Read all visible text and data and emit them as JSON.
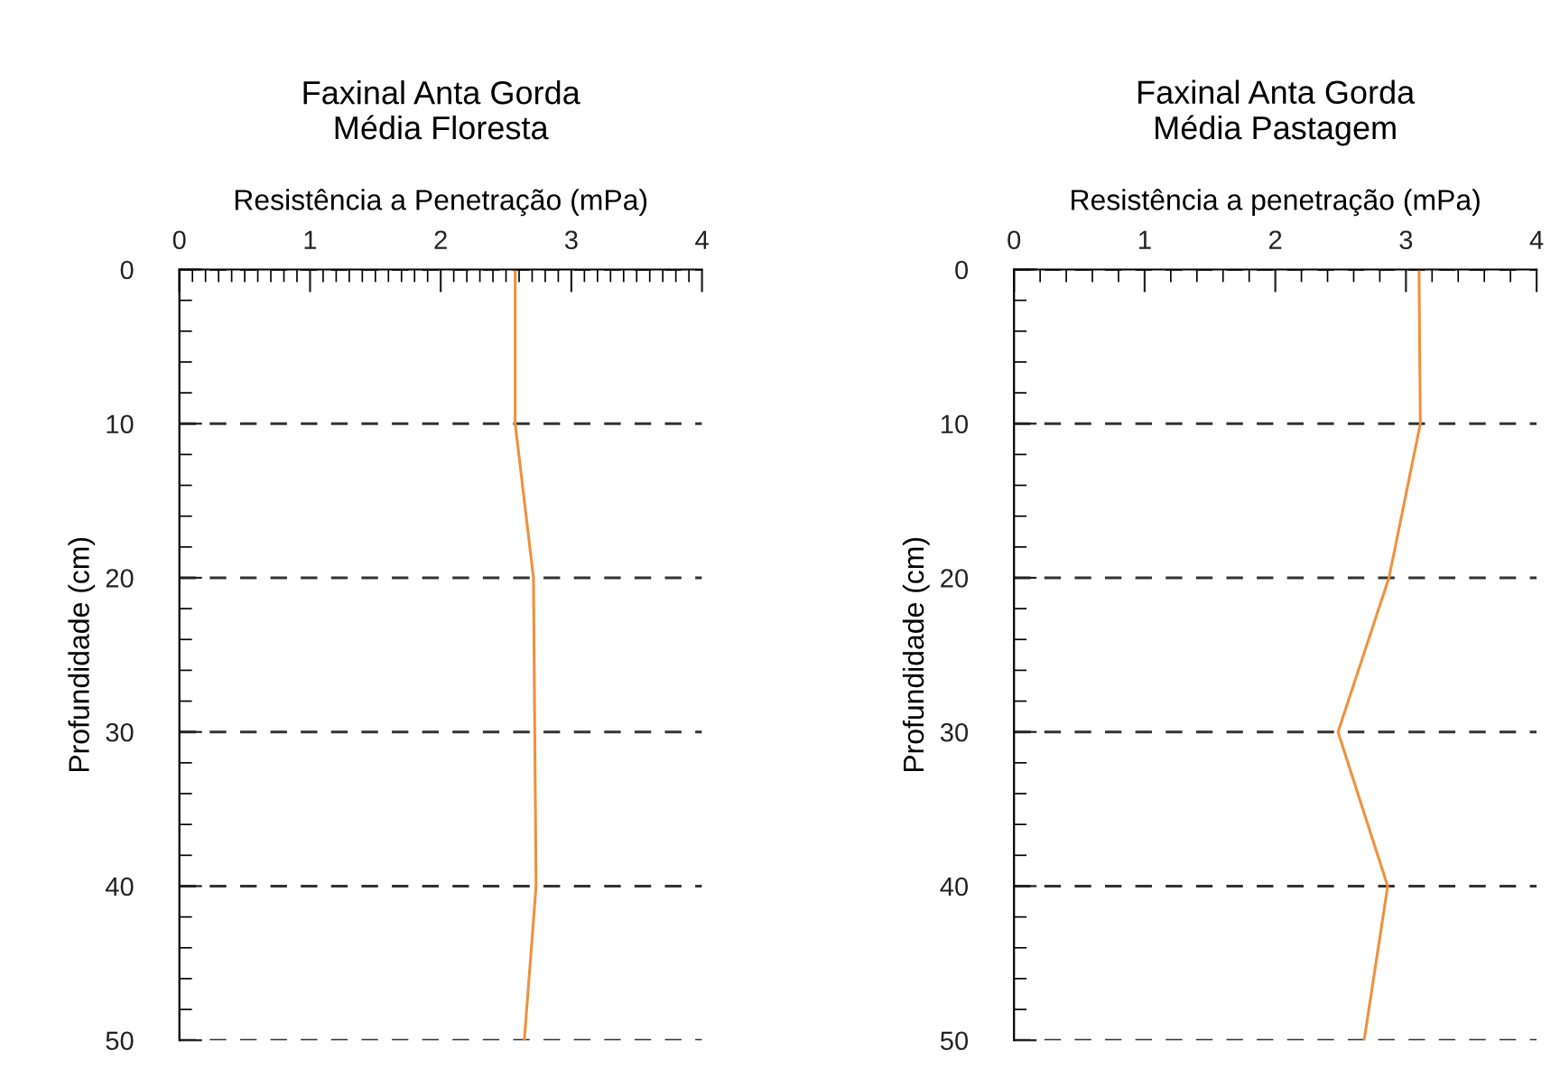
{
  "chart_data": [
    {
      "type": "line",
      "title": "Faxinal Anta Gorda",
      "subtitle": "Média Floresta",
      "xlabel": "Resistência a Penetração (mPa)",
      "ylabel": "Profundidade (cm)",
      "orientation": "horizontal",
      "x": [
        0,
        10,
        20,
        30,
        40,
        50
      ],
      "series": [
        {
          "color": "#f0903c",
          "values": [
            2.57,
            2.57,
            2.71,
            2.72,
            2.73,
            2.64
          ]
        }
      ],
      "xlim": [
        0,
        4
      ],
      "xticks": [
        0,
        1,
        2,
        3,
        4
      ],
      "ylim": [
        50,
        0
      ],
      "yticks": [
        0,
        10,
        20,
        30,
        40,
        50
      ],
      "grid": "y",
      "marker": "none",
      "line_style": "solid"
    },
    {
      "type": "line",
      "title": "Faxinal Anta Gorda",
      "subtitle": "Média Pastagem",
      "xlabel": "Resistência a penetração (mPa)",
      "ylabel": "Profundidade (cm)",
      "orientation": "horizontal",
      "x": [
        0,
        10,
        20,
        30,
        40,
        50
      ],
      "series": [
        {
          "color": "#f0903c",
          "values": [
            3.1,
            3.11,
            2.87,
            2.48,
            2.86,
            2.68
          ]
        }
      ],
      "xlim": [
        0,
        4
      ],
      "xticks": [
        0,
        1,
        2,
        3,
        4
      ],
      "ylim": [
        50,
        0
      ],
      "yticks": [
        0,
        10,
        20,
        30,
        40,
        50
      ],
      "grid": "y",
      "marker": "none",
      "line_style": "solid"
    }
  ]
}
